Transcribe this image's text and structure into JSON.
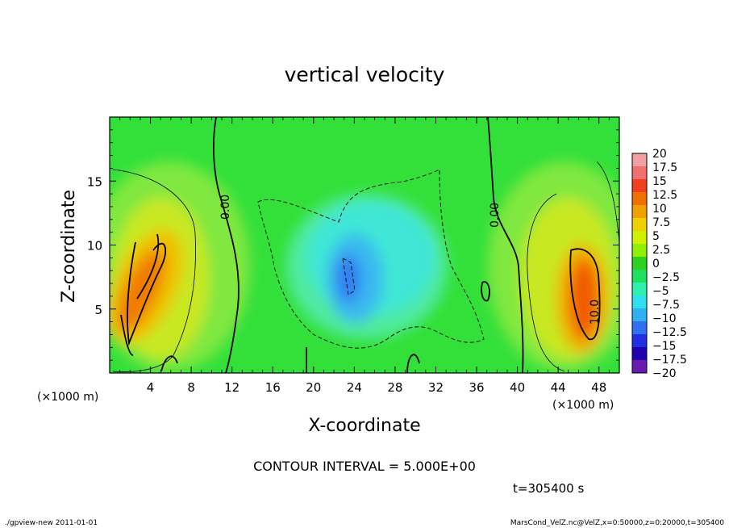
{
  "chart_data": {
    "type": "heatmap",
    "title": "vertical velocity",
    "xlabel": "X-coordinate",
    "ylabel": "Z-coordinate",
    "x_unit_left": "(×1000 m)",
    "x_unit_right": "(×1000 m)",
    "xlim": [
      0,
      50
    ],
    "ylim": [
      0,
      20
    ],
    "x_ticks": [
      4,
      8,
      12,
      16,
      20,
      24,
      28,
      32,
      36,
      40,
      44,
      48
    ],
    "y_ticks": [
      5,
      10,
      15
    ],
    "colorbar_levels": [
      20,
      17.5,
      15,
      12.5,
      10,
      7.5,
      5,
      2.5,
      0,
      -2.5,
      -5,
      -7.5,
      -10,
      -12.5,
      -15,
      -17.5,
      -20
    ],
    "colorbar_colors": [
      "#f0a0a0",
      "#f07070",
      "#f04020",
      "#f07000",
      "#f0a000",
      "#f0d000",
      "#d0f000",
      "#90f000",
      "#30d020",
      "#20e060",
      "#30f0b0",
      "#30e0f0",
      "#30b0f0",
      "#3070f0",
      "#2030e0",
      "#2000b0",
      "#6a1ab0"
    ],
    "contour_labels": [
      "0.00",
      "0.00",
      "10.0"
    ],
    "contour_interval_text": "CONTOUR INTERVAL = 5.000E+00",
    "time_text": "t=305400 s",
    "legend_position": "right"
  },
  "footer": {
    "left": "./gpview-new   2011-01-01",
    "right": "MarsCond_VelZ.nc@VelZ,x=0:50000,z=0:20000,t=305400"
  }
}
